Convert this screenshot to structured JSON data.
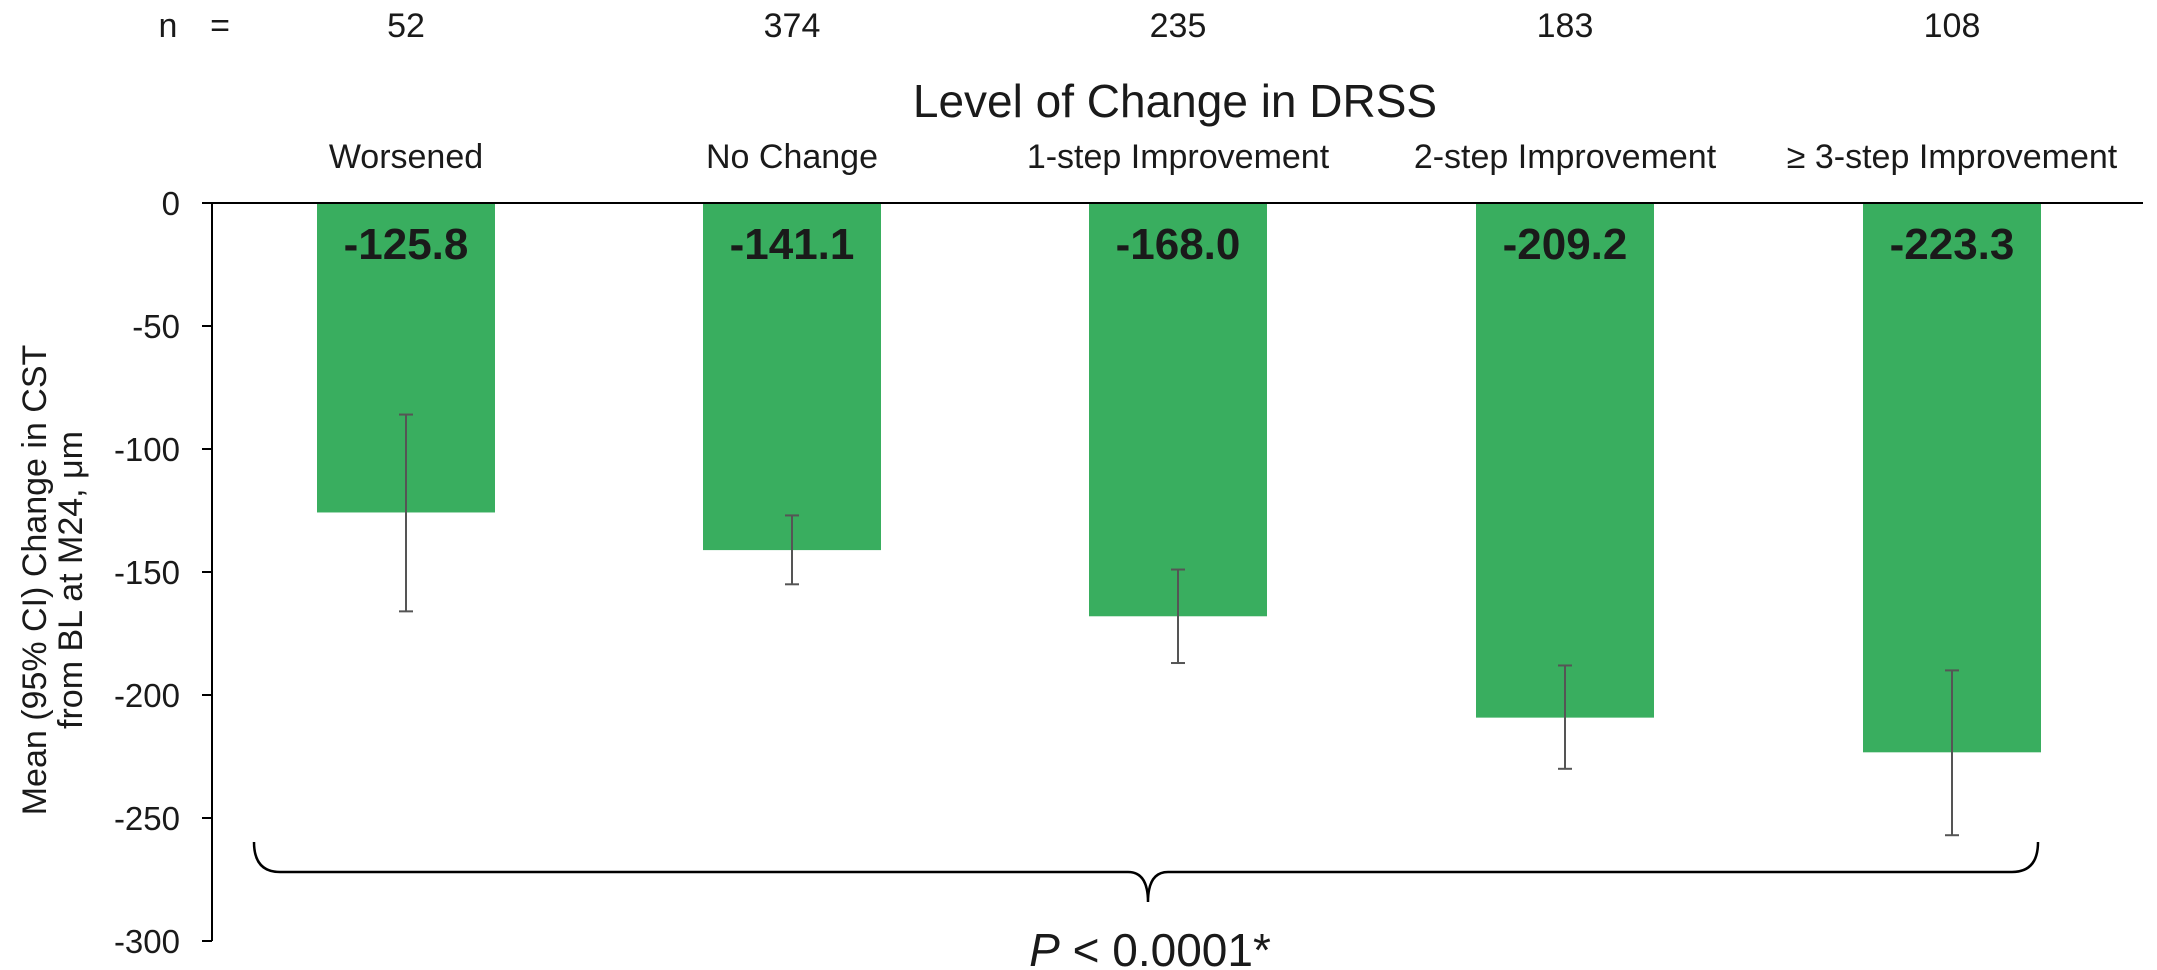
{
  "chart_data": {
    "type": "bar",
    "title": "Level of Change in DRSS",
    "n_label": "n",
    "n_equals": "=",
    "n_values": [
      "52",
      "374",
      "235",
      "183",
      "108"
    ],
    "categories": [
      "Worsened",
      "No Change",
      "1-step Improvement",
      "2-step Improvement",
      "≥ 3-step Improvement"
    ],
    "values": [
      -125.8,
      -141.1,
      -168.0,
      -209.2,
      -223.3
    ],
    "value_labels": [
      "-125.8",
      "-141.1",
      "-168.0",
      "-209.2",
      "-223.3"
    ],
    "ci_low": [
      -166,
      -155,
      -187,
      -230,
      -257
    ],
    "ci_high": [
      -86,
      -127,
      -149,
      -188,
      -190
    ],
    "ylabel_line1": "Mean (95% CI) Change in CST",
    "ylabel_line2": "from BL at M24, μm",
    "yticks": [
      "0",
      "-50",
      "-100",
      "-150",
      "-200",
      "-250",
      "-300"
    ],
    "ylim": [
      -300,
      0
    ],
    "grid": false,
    "pvalue_prefix": "P",
    "pvalue_rest": " < 0.0001*",
    "colors": {
      "bar": "#39ae5f",
      "error_bar": "#555555",
      "axis": "#000000"
    }
  }
}
